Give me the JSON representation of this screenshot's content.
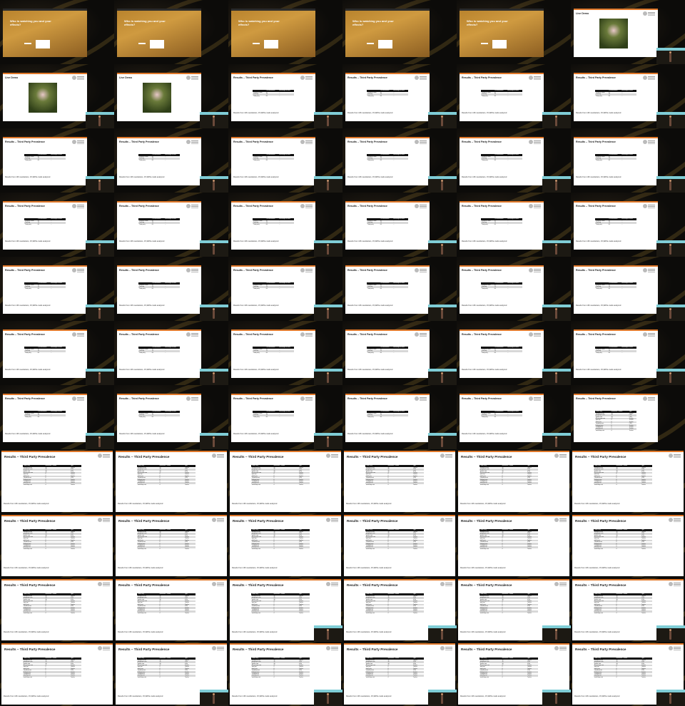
{
  "frames": [
    {
      "type": "hero",
      "title": "Who is watching you and your effects?"
    },
    {
      "type": "hero",
      "title": "Who is watching you and your effects?"
    },
    {
      "type": "hero",
      "title": "Who is watching you and your effects?"
    },
    {
      "type": "hero",
      "title": "Who is watching you and your effects?"
    },
    {
      "type": "hero",
      "title": "Who is watching you and your effects?"
    },
    {
      "type": "demo",
      "title": "Live Demo"
    },
    {
      "type": "demo",
      "title": "Live Demo"
    },
    {
      "type": "demo",
      "title": "Live Demo"
    },
    {
      "type": "table3",
      "title": "Results – Third Party Prevalence"
    },
    {
      "type": "table3",
      "title": "Results – Third Party Prevalence"
    },
    {
      "type": "table3",
      "title": "Results – Third Party Prevalence"
    },
    {
      "type": "table3",
      "title": "Results – Third Party Prevalence"
    },
    {
      "type": "table3",
      "title": "Results – Third Party Prevalence"
    },
    {
      "type": "table3",
      "title": "Results – Third Party Prevalence"
    },
    {
      "type": "table3",
      "title": "Results – Third Party Prevalence"
    },
    {
      "type": "table3",
      "title": "Results – Third Party Prevalence"
    },
    {
      "type": "table3",
      "title": "Results – Third Party Prevalence"
    },
    {
      "type": "table3",
      "title": "Results – Third Party Prevalence"
    },
    {
      "type": "table3",
      "title": "Results – Third Party Prevalence"
    },
    {
      "type": "table3",
      "title": "Results – Third Party Prevalence"
    },
    {
      "type": "table3",
      "title": "Results – Third Party Prevalence"
    },
    {
      "type": "table3",
      "title": "Results – Third Party Prevalence"
    },
    {
      "type": "table3",
      "title": "Results – Third Party Prevalence"
    },
    {
      "type": "table3",
      "title": "Results – Third Party Prevalence"
    },
    {
      "type": "table3",
      "title": "Results – Third Party Prevalence"
    },
    {
      "type": "table3",
      "title": "Results – Third Party Prevalence"
    },
    {
      "type": "table3",
      "title": "Results – Third Party Prevalence"
    },
    {
      "type": "table3",
      "title": "Results – Third Party Prevalence"
    },
    {
      "type": "table3",
      "title": "Results – Third Party Prevalence"
    },
    {
      "type": "table3",
      "title": "Results – Third Party Prevalence"
    },
    {
      "type": "table3",
      "title": "Results – Third Party Prevalence"
    },
    {
      "type": "table3",
      "title": "Results – Third Party Prevalence"
    },
    {
      "type": "table3",
      "title": "Results – Third Party Prevalence"
    },
    {
      "type": "table3",
      "title": "Results – Third Party Prevalence"
    },
    {
      "type": "table3",
      "title": "Results – Third Party Prevalence"
    },
    {
      "type": "table3",
      "title": "Results – Third Party Prevalence"
    },
    {
      "type": "table3",
      "title": "Results – Third Party Prevalence"
    },
    {
      "type": "table3",
      "title": "Results – Third Party Prevalence"
    },
    {
      "type": "table3",
      "title": "Results – Third Party Prevalence"
    },
    {
      "type": "table3",
      "title": "Results – Third Party Prevalence"
    },
    {
      "type": "table3",
      "title": "Results – Third Party Prevalence"
    },
    {
      "type": "tablelong",
      "title": "Results – Third Party Prevalence"
    },
    {
      "type": "big",
      "title": "Results – Third Party Prevalence"
    },
    {
      "type": "big",
      "title": "Results – Third Party Prevalence"
    },
    {
      "type": "big",
      "title": "Results – Third Party Prevalence"
    },
    {
      "type": "big",
      "title": "Results – Third Party Prevalence"
    },
    {
      "type": "big",
      "title": "Results – Third Party Prevalence"
    },
    {
      "type": "big",
      "title": "Results – Third Party Prevalence"
    },
    {
      "type": "big",
      "title": "Results – Third Party Prevalence"
    },
    {
      "type": "big",
      "title": "Results – Third Party Prevalence"
    },
    {
      "type": "big",
      "title": "Results – Third Party Prevalence"
    },
    {
      "type": "big",
      "title": "Results – Third Party Prevalence"
    },
    {
      "type": "big",
      "title": "Results – Third Party Prevalence"
    },
    {
      "type": "big",
      "title": "Results – Third Party Prevalence"
    },
    {
      "type": "big",
      "title": "Results – Third Party Prevalence"
    },
    {
      "type": "big",
      "title": "Results – Third Party Prevalence"
    },
    {
      "type": "big",
      "title": "Results – Third Party Prevalence"
    },
    {
      "type": "big",
      "title": "Results – Third Party Prevalence"
    },
    {
      "type": "big",
      "title": "Results – Third Party Prevalence"
    },
    {
      "type": "big",
      "title": "Results – Third Party Prevalence"
    },
    {
      "type": "big",
      "title": "Results – Third Party Prevalence"
    },
    {
      "type": "big",
      "title": "Results – Third Party Prevalence"
    },
    {
      "type": "big",
      "title": "Results – Third Party Prevalence"
    },
    {
      "type": "big",
      "title": "Results – Third Party Prevalence"
    },
    {
      "type": "big",
      "title": "Results – Third Party Prevalence"
    },
    {
      "type": "big",
      "title": "Results – Third Party Prevalence"
    }
  ],
  "pip_flags": [
    0,
    0,
    0,
    0,
    0,
    1,
    1,
    1,
    1,
    1,
    1,
    1,
    1,
    1,
    1,
    1,
    1,
    1,
    1,
    1,
    1,
    1,
    1,
    1,
    1,
    1,
    1,
    1,
    1,
    1,
    1,
    1,
    1,
    1,
    1,
    1,
    1,
    1,
    1,
    1,
    1,
    0,
    0,
    0,
    0,
    0,
    0,
    0,
    0,
    0,
    0,
    0,
    0,
    0,
    0,
    0,
    1,
    1,
    1,
    1,
    0,
    1,
    1,
    1,
    1,
    1
  ],
  "footer_text": "Results from 136 newsletters, 15,328 E-mails analyzed",
  "small_table": {
    "headers": [
      "",
      "# of newsletters",
      "Percentage of mails"
    ],
    "rows": [
      [
        "Contains a mail",
        "92",
        "..."
      ],
      [
        "Tracking",
        "74",
        "..."
      ],
      [
        "Third party",
        "63",
        "..."
      ]
    ]
  },
  "big_table": {
    "headers": [
      "Third Party",
      "Newsletter # shown",
      "Type"
    ],
    "rows": [
      [
        "doubleclick.net",
        "35",
        "Tracker"
      ],
      [
        "googleapis.com",
        "33",
        "CDN"
      ],
      [
        "gstatic.com",
        "18",
        "CDN"
      ],
      [
        "list-manage.com",
        "17",
        "Tracker"
      ],
      [
        "pixel.wp",
        "9",
        "Tracker"
      ],
      [
        "mkt1.com",
        "8",
        "Tracker"
      ],
      [
        "cloudfront.net",
        "6",
        "CDN"
      ],
      [
        "hubspot.com",
        "6",
        "Tracker"
      ],
      [
        "sendgrid.net",
        "5",
        "Tracker"
      ],
      [
        "emarsys.net",
        "5",
        "Tracker"
      ],
      [
        "mailchimp.com",
        "4",
        "Tracker"
      ]
    ]
  },
  "colors": {
    "accent": "#e0782a",
    "pip_bar": "#7fcdd6",
    "stage": "#0c0b09"
  }
}
